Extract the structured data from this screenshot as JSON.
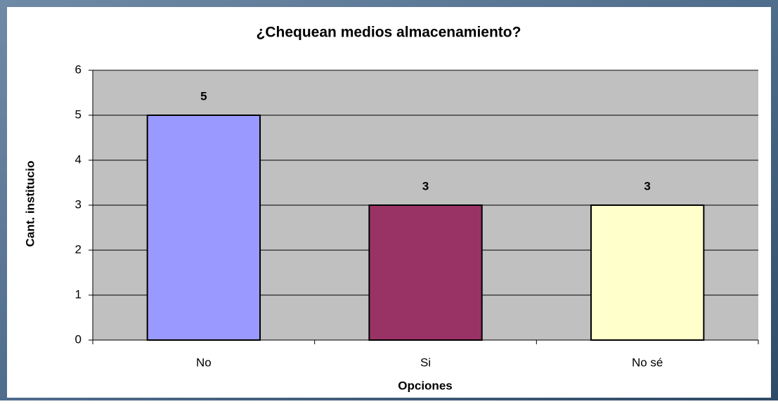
{
  "chart_data": {
    "type": "bar",
    "title": "¿Chequean medios almacenamiento?",
    "x_label": "Opciones",
    "y_label": "Cant. institucio",
    "categories": [
      "No",
      "Si",
      "No sé"
    ],
    "values": [
      5,
      3,
      3
    ],
    "colors": [
      "#9999ff",
      "#993366",
      "#ffffcc"
    ],
    "ylim": [
      0,
      6
    ],
    "yticks": [
      0,
      1,
      2,
      3,
      4,
      5,
      6
    ],
    "grid": true
  }
}
